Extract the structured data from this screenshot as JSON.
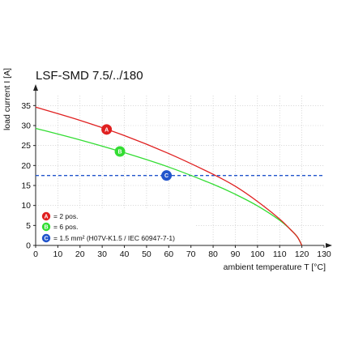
{
  "chart_data": {
    "type": "line",
    "title": "LSF-SMD 7.5/../180",
    "xlabel": "ambient temperature T [°C]",
    "ylabel": "load current I [A]",
    "xlim": [
      0,
      130
    ],
    "ylim": [
      0,
      37.5
    ],
    "x_ticks": [
      "0",
      "10",
      "20",
      "30",
      "40",
      "50",
      "60",
      "70",
      "80",
      "90",
      "100",
      "110",
      "120",
      "130"
    ],
    "y_ticks": [
      "0",
      "5",
      "10",
      "15",
      "20",
      "25",
      "30",
      "35"
    ],
    "grid": true,
    "legend_position": "bottom-left",
    "series": [
      {
        "name": "= 2 pos.",
        "label": "A",
        "color": "#e02020",
        "line_style": "solid",
        "marker_x": 32,
        "points": [
          [
            0,
            34.6
          ],
          [
            20,
            31.3
          ],
          [
            40,
            27.5
          ],
          [
            60,
            23.0
          ],
          [
            80,
            17.8
          ],
          [
            90,
            14.8
          ],
          [
            100,
            11.0
          ],
          [
            110,
            6.6
          ],
          [
            115,
            3.9
          ],
          [
            118,
            2.1
          ],
          [
            120,
            0
          ]
        ]
      },
      {
        "name": "= 6 pos.",
        "label": "B",
        "color": "#33dd33",
        "line_style": "solid",
        "marker_x": 38,
        "points": [
          [
            0,
            29.3
          ],
          [
            20,
            26.4
          ],
          [
            40,
            23.2
          ],
          [
            60,
            19.6
          ],
          [
            80,
            15.3
          ],
          [
            90,
            12.8
          ],
          [
            100,
            9.9
          ],
          [
            110,
            6.3
          ],
          [
            115,
            3.9
          ],
          [
            118,
            2.1
          ],
          [
            120,
            0
          ]
        ]
      },
      {
        "name": "= 1.5 mm² (H07V-K1.5 / IEC 60947-7-1)",
        "label": "C",
        "color": "#2255cc",
        "line_style": "dashed",
        "marker_x": 59,
        "points": [
          [
            0,
            17.5
          ],
          [
            130,
            17.5
          ]
        ]
      }
    ]
  }
}
